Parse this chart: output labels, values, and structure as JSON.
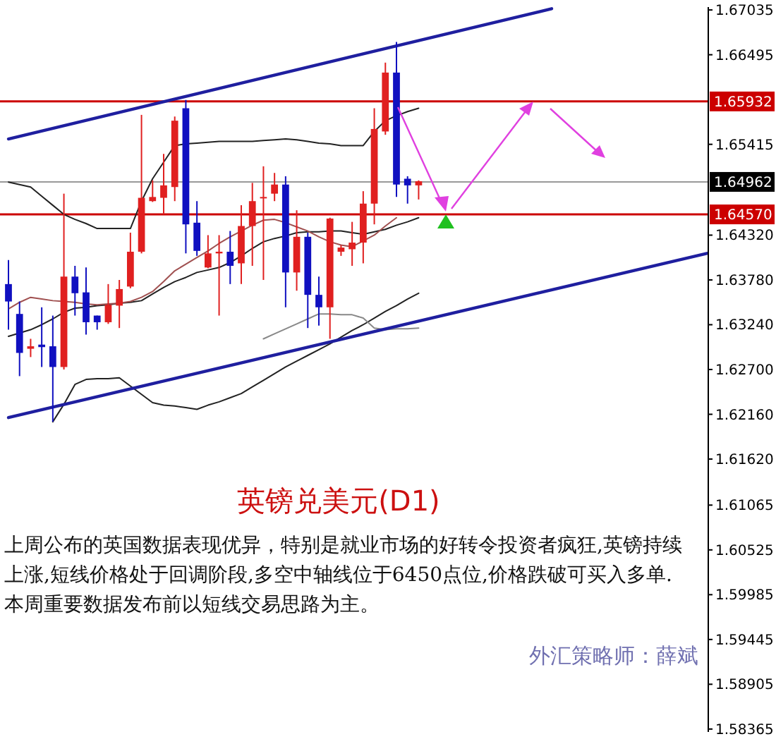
{
  "chart_data": {
    "type": "candlestick",
    "title": "英镑兑美元(D1)",
    "annotations": [
      "上周公布的英国数据表现优异，特别是就业市场的好转令投资者疯狂,英镑持续上涨,短线价格处于回调阶段,多空中轴线位于6450点位,价格跌破可买入多单.本周重要数据发布前以短线交易思路为主。",
      "外汇策略师：薛斌"
    ],
    "categories": [
      null,
      null,
      null,
      null,
      null,
      null,
      null,
      null,
      null,
      null,
      null,
      null,
      null,
      null,
      null,
      null,
      null,
      null,
      null,
      null,
      null,
      null,
      null,
      null,
      null,
      null,
      null,
      null,
      null,
      null,
      null,
      null,
      null,
      null,
      null,
      null,
      null,
      null,
      null,
      null,
      null,
      null,
      null,
      null,
      null,
      null,
      null,
      null,
      null,
      null,
      null,
      null,
      null,
      null,
      null,
      null,
      null,
      null,
      null,
      null,
      null,
      null,
      null,
      null
    ],
    "ohlc": [
      [
        1.6373,
        1.6402,
        1.6318,
        1.6352
      ],
      [
        1.6337,
        1.6352,
        1.6262,
        1.629
      ],
      [
        1.6295,
        1.6307,
        1.6285,
        1.6298
      ],
      [
        1.63,
        1.6345,
        1.6273,
        1.6297
      ],
      [
        1.6298,
        1.6335,
        1.6207,
        1.6273
      ],
      [
        1.6273,
        1.6482,
        1.627,
        1.6382
      ],
      [
        1.6382,
        1.6395,
        1.6335,
        1.6362
      ],
      [
        1.6363,
        1.6393,
        1.6312,
        1.6327
      ],
      [
        1.6335,
        1.6335,
        1.6318,
        1.6327
      ],
      [
        1.6327,
        1.6373,
        1.6325,
        1.6348
      ],
      [
        1.6347,
        1.6378,
        1.632,
        1.6367
      ],
      [
        1.637,
        1.6435,
        1.6368,
        1.6412
      ],
      [
        1.6412,
        1.6577,
        1.641,
        1.6477
      ],
      [
        1.6473,
        1.6498,
        1.6472,
        1.6478
      ],
      [
        1.6477,
        1.653,
        1.6457,
        1.6492
      ],
      [
        1.649,
        1.6575,
        1.6473,
        1.657
      ],
      [
        1.6585,
        1.6595,
        1.641,
        1.6445
      ],
      [
        1.6447,
        1.6473,
        1.6407,
        1.6413
      ],
      [
        1.6393,
        1.6432,
        1.6392,
        1.641
      ],
      [
        1.641,
        1.6432,
        1.6335,
        1.6412
      ],
      [
        1.6412,
        1.6437,
        1.6373,
        1.6395
      ],
      [
        1.6398,
        1.6468,
        1.6373,
        1.6443
      ],
      [
        1.6443,
        1.6495,
        1.6395,
        1.6473
      ],
      [
        1.6477,
        1.6515,
        1.6378,
        1.6478
      ],
      [
        1.6482,
        1.6507,
        1.6473,
        1.6493
      ],
      [
        1.6493,
        1.6503,
        1.6345,
        1.6387
      ],
      [
        1.6387,
        1.6462,
        1.6365,
        1.643
      ],
      [
        1.643,
        1.6435,
        1.632,
        1.636
      ],
      [
        1.636,
        1.6382,
        1.6323,
        1.6345
      ],
      [
        1.6345,
        1.6453,
        1.6307,
        1.6452
      ],
      [
        1.6412,
        1.642,
        1.6407,
        1.6417
      ],
      [
        1.6415,
        1.6448,
        1.6395,
        1.6423
      ],
      [
        1.6423,
        1.6485,
        1.6398,
        1.647
      ],
      [
        1.647,
        1.6585,
        1.6445,
        1.656
      ],
      [
        1.6557,
        1.664,
        1.6553,
        1.6628
      ],
      [
        1.6628,
        1.6665,
        1.6478,
        1.6493
      ],
      [
        1.65,
        1.6503,
        1.647,
        1.6492
      ],
      [
        1.6492,
        1.6498,
        1.6475,
        1.6497
      ],
      null,
      null,
      null,
      null,
      null,
      null,
      null,
      null,
      null,
      null,
      null,
      null,
      null,
      null,
      null,
      null,
      null,
      null,
      null,
      null,
      null,
      null,
      null,
      null,
      null,
      null
    ],
    "colors": [
      "#1010c0",
      "#1010c0",
      "#e02020",
      "#1010c0",
      "#1010c0",
      "#e02020",
      "#1010c0",
      "#1010c0",
      "#1010c0",
      "#e02020",
      "#e02020",
      "#e02020",
      "#e02020",
      "#e02020",
      "#e02020",
      "#e02020",
      "#1010c0",
      "#1010c0",
      "#e02020",
      "#e02020",
      "#1010c0",
      "#e02020",
      "#e02020",
      "#e02020",
      "#e02020",
      "#1010c0",
      "#e02020",
      "#1010c0",
      "#1010c0",
      "#e02020",
      "#e02020",
      "#e02020",
      "#e02020",
      "#e02020",
      "#e02020",
      "#1010c0",
      "#1010c0",
      "#e02020",
      null,
      null,
      null,
      null,
      null,
      null,
      null,
      null,
      null,
      null,
      null,
      null,
      null,
      null,
      null,
      null,
      null,
      null,
      null,
      null,
      null,
      null,
      null,
      null,
      null,
      null
    ],
    "series": [
      {
        "type": "line",
        "color": "#222222",
        "values": [
          1.6496,
          1.6493,
          1.649,
          1.6479,
          1.6468,
          1.6457,
          1.6451,
          1.6446,
          1.644,
          1.644,
          1.644,
          1.644,
          1.6473,
          1.65,
          1.652,
          1.654,
          1.6542,
          1.6543,
          1.6544,
          1.6545,
          1.6545,
          1.6545,
          1.6545,
          1.6546,
          1.6547,
          1.6548,
          1.6547,
          1.6545,
          1.6543,
          1.6542,
          1.654,
          1.654,
          1.654,
          1.6557,
          1.657,
          1.6576,
          1.6581,
          1.6585,
          null,
          null,
          null,
          null,
          null,
          null,
          null,
          null,
          null,
          null,
          null,
          null,
          null,
          null,
          null,
          null,
          null,
          null,
          null,
          null,
          null,
          null,
          null,
          null,
          null,
          null
        ]
      },
      {
        "type": "line",
        "color": "#222222",
        "values": [
          1.631,
          1.6314,
          1.6318,
          1.6324,
          1.6331,
          1.6339,
          1.6344,
          1.6345,
          1.6347,
          1.6348,
          1.635,
          1.6351,
          1.6353,
          1.6361,
          1.6369,
          1.6376,
          1.6381,
          1.6387,
          1.639,
          1.6393,
          1.6399,
          1.6407,
          1.6416,
          1.6424,
          1.6428,
          1.6431,
          1.6435,
          1.6436,
          1.6436,
          1.6437,
          1.6437,
          1.6435,
          1.6433,
          1.6436,
          1.6439,
          1.6444,
          1.6448,
          1.6453,
          null,
          null,
          null,
          null,
          null,
          null,
          null,
          null,
          null,
          null,
          null,
          null,
          null,
          null,
          null,
          null,
          null,
          null,
          null,
          null,
          null,
          null,
          null,
          null,
          null,
          null
        ]
      },
      {
        "type": "line",
        "color": "#a05050",
        "values": [
          1.6343,
          1.6351,
          1.6357,
          1.6355,
          1.6353,
          1.6352,
          1.6351,
          1.6349,
          1.6348,
          1.6349,
          1.635,
          1.6352,
          1.6357,
          1.6364,
          1.6376,
          1.6389,
          1.6397,
          1.6405,
          1.6413,
          1.6422,
          1.643,
          1.6437,
          1.6444,
          1.645,
          1.6451,
          1.6447,
          1.6442,
          1.6437,
          1.643,
          1.6424,
          1.642,
          1.6418,
          1.6425,
          1.6432,
          1.6443,
          1.6453,
          null,
          null,
          null,
          null,
          null,
          null,
          null,
          null,
          null,
          null,
          null,
          null,
          null,
          null,
          null,
          null,
          null,
          null,
          null,
          null,
          null,
          null,
          null,
          null,
          null,
          null,
          null,
          null
        ]
      },
      {
        "type": "line",
        "color": "#222222",
        "values": [
          null,
          null,
          null,
          null,
          1.6207,
          1.6228,
          1.6252,
          1.6258,
          1.6259,
          1.6259,
          1.626,
          1.625,
          1.624,
          1.623,
          1.6227,
          1.6226,
          1.6224,
          1.6222,
          1.6227,
          1.6231,
          1.6236,
          1.6241,
          1.6249,
          1.6257,
          1.6265,
          1.6273,
          1.628,
          1.6287,
          1.6294,
          1.6301,
          1.6309,
          1.6317,
          1.6324,
          1.6332,
          1.634,
          1.6347,
          1.6355,
          1.6362,
          null,
          null,
          null,
          null,
          null,
          null,
          null,
          null,
          null,
          null,
          null,
          null,
          null,
          null,
          null,
          null,
          null,
          null,
          null,
          null,
          null,
          null,
          null,
          null,
          null,
          null
        ]
      },
      {
        "type": "line",
        "color": "#888888",
        "values": [
          null,
          null,
          null,
          null,
          null,
          null,
          null,
          null,
          null,
          null,
          null,
          null,
          null,
          null,
          null,
          null,
          null,
          null,
          null,
          null,
          null,
          null,
          null,
          1.6307,
          1.6313,
          1.6319,
          1.6325,
          1.6331,
          1.6337,
          1.6337,
          1.6336,
          1.6336,
          1.6332,
          1.632,
          1.6318,
          1.6319,
          1.6319,
          1.632,
          null,
          null,
          null,
          null,
          null,
          null,
          null,
          null,
          null,
          null,
          null,
          null,
          null,
          null,
          null,
          null,
          null,
          null,
          null,
          null,
          null,
          null,
          null,
          null,
          null,
          null
        ]
      },
      {
        "type": "line",
        "color": "#1f1f9f",
        "values": [
          1.6548,
          null,
          null,
          null,
          null,
          null,
          null,
          null,
          null,
          null,
          null,
          null,
          null,
          null,
          null,
          null,
          null,
          null,
          null,
          null,
          null,
          null,
          null,
          null,
          null,
          null,
          null,
          null,
          null,
          null,
          null,
          null,
          null,
          null,
          null,
          null,
          null,
          null,
          null,
          null,
          null,
          null,
          null,
          null,
          null,
          null,
          null,
          null,
          null,
          1.6705,
          null,
          null,
          null,
          null,
          null,
          null,
          null,
          null,
          null,
          null,
          null,
          null,
          null,
          null
        ]
      },
      {
        "type": "line",
        "color": "#1f1f9f",
        "values": [
          1.6212,
          null,
          null,
          null,
          null,
          null,
          null,
          null,
          null,
          null,
          null,
          null,
          null,
          null,
          null,
          null,
          null,
          null,
          null,
          null,
          null,
          null,
          null,
          null,
          null,
          null,
          null,
          null,
          null,
          null,
          null,
          null,
          null,
          null,
          null,
          null,
          null,
          null,
          null,
          null,
          null,
          null,
          null,
          null,
          null,
          null,
          null,
          null,
          null,
          null,
          null,
          null,
          null,
          null,
          null,
          null,
          null,
          null,
          null,
          null,
          null,
          null,
          null,
          1.641
        ]
      }
    ],
    "ylim": [
      1.5833,
      1.6707
    ],
    "yticks": [
      1.67035,
      1.66495,
      1.65415,
      {
        "value": 1.6432,
        "label": "1.64320"
      },
      {
        "value": 1.6378,
        "label": "1.63780"
      },
      {
        "value": 1.6324,
        "label": "1.63240"
      },
      {
        "value": 1.627,
        "label": "1.62700"
      },
      {
        "value": 1.6216,
        "label": "1.62160"
      },
      {
        "value": 1.6162,
        "label": "1.61620"
      },
      1.61065,
      1.60525,
      1.59985,
      1.59445,
      1.58905,
      1.58365
    ],
    "tick_labels": "y",
    "ref_lines": [
      {
        "axis": "y",
        "value": 1.65932,
        "label": "1.65932",
        "color": "#cc0000"
      },
      {
        "axis": "y",
        "value": 1.6457,
        "label": "1.64570",
        "color": "#cc0000"
      },
      {
        "axis": "y",
        "value": 1.64962,
        "label": "1.64962",
        "color": "#999999"
      }
    ]
  }
}
